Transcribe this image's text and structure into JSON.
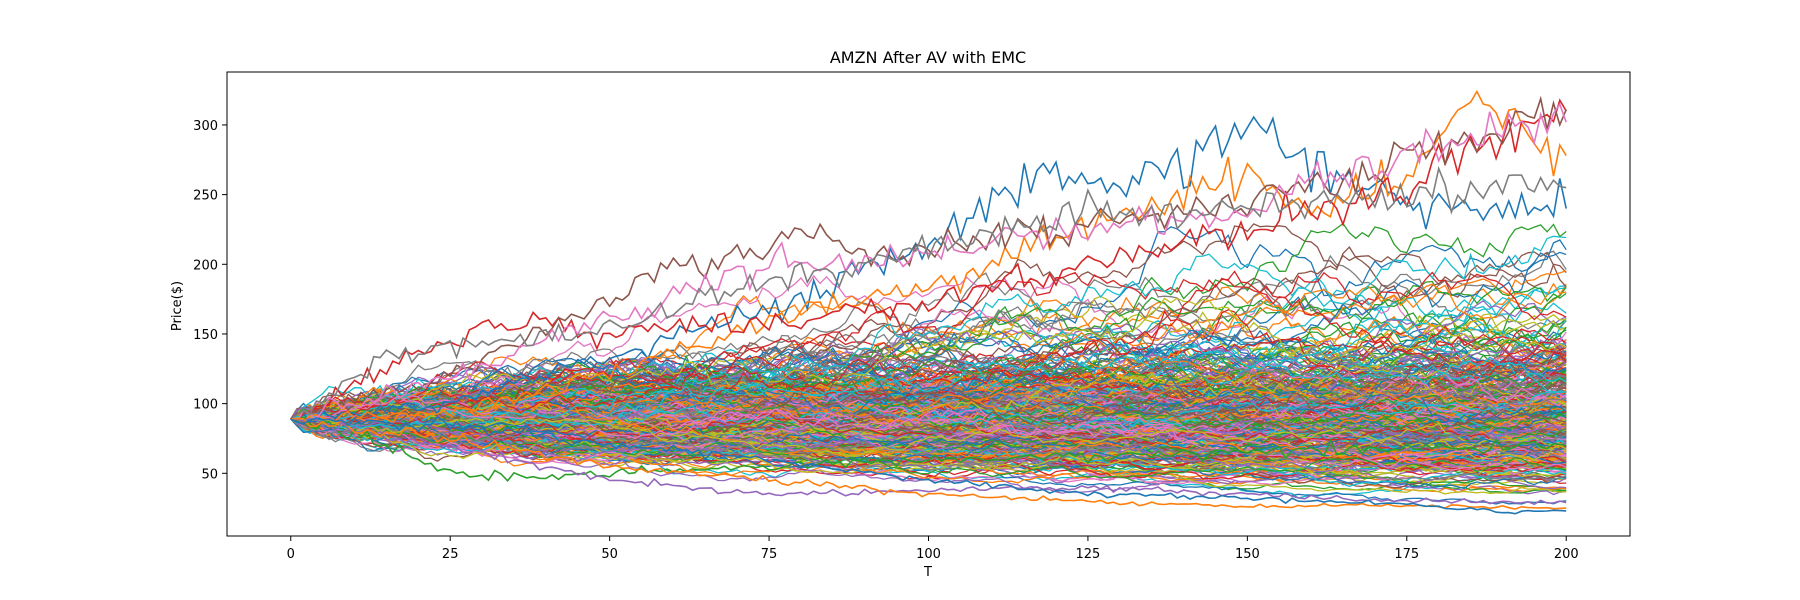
{
  "chart_data": {
    "type": "line",
    "title": "AMZN After AV with EMC",
    "xlabel": "T",
    "ylabel": "Price($)",
    "xlim": [
      -10,
      210
    ],
    "ylim": [
      5,
      338
    ],
    "x_ticks": [
      0,
      25,
      50,
      75,
      100,
      125,
      150,
      175,
      200
    ],
    "y_ticks": [
      50,
      100,
      150,
      200,
      250,
      300
    ],
    "start_price": 89,
    "steps": 200,
    "grid": false,
    "legend": "none",
    "series_colors": [
      "#1f77b4",
      "#ff7f0e",
      "#2ca02c",
      "#d62728",
      "#9467bd",
      "#8c564b",
      "#e377c2",
      "#7f7f7f",
      "#bcbd22",
      "#17becf"
    ],
    "series": [
      {
        "values": [
          [
            0,
            89
          ],
          [
            25,
            100
          ],
          [
            50,
            135
          ],
          [
            75,
            170
          ],
          [
            100,
            215
          ],
          [
            110,
            245
          ],
          [
            120,
            272
          ],
          [
            130,
            250
          ],
          [
            140,
            278
          ],
          [
            150,
            299
          ],
          [
            155,
            290
          ],
          [
            160,
            270
          ],
          [
            175,
            245
          ],
          [
            200,
            240
          ]
        ],
        "color": "#1f77b4"
      },
      {
        "values": [
          [
            0,
            89
          ],
          [
            25,
            95
          ],
          [
            50,
            120
          ],
          [
            75,
            160
          ],
          [
            100,
            185
          ],
          [
            125,
            230
          ],
          [
            140,
            250
          ],
          [
            150,
            262
          ],
          [
            160,
            240
          ],
          [
            175,
            265
          ],
          [
            186,
            325
          ],
          [
            190,
            300
          ],
          [
            200,
            278
          ]
        ],
        "color": "#ff7f0e"
      },
      {
        "values": [
          [
            0,
            89
          ],
          [
            25,
            148
          ],
          [
            30,
            155
          ],
          [
            40,
            155
          ],
          [
            50,
            150
          ],
          [
            75,
            160
          ],
          [
            100,
            175
          ],
          [
            125,
            200
          ],
          [
            150,
            225
          ],
          [
            175,
            255
          ],
          [
            190,
            300
          ],
          [
            200,
            310
          ]
        ],
        "color": "#d62728"
      },
      {
        "values": [
          [
            0,
            89
          ],
          [
            25,
            120
          ],
          [
            50,
            175
          ],
          [
            60,
            195
          ],
          [
            75,
            210
          ],
          [
            80,
            225
          ],
          [
            90,
            205
          ],
          [
            100,
            210
          ],
          [
            125,
            230
          ],
          [
            150,
            245
          ],
          [
            175,
            275
          ],
          [
            200,
            311
          ]
        ],
        "color": "#8c564b"
      },
      {
        "values": [
          [
            0,
            89
          ],
          [
            25,
            118
          ],
          [
            50,
            160
          ],
          [
            75,
            200
          ],
          [
            100,
            205
          ],
          [
            125,
            225
          ],
          [
            150,
            240
          ],
          [
            175,
            280
          ],
          [
            190,
            295
          ],
          [
            200,
            302
          ]
        ],
        "color": "#e377c2"
      },
      {
        "values": [
          [
            0,
            89
          ],
          [
            15,
            135
          ],
          [
            25,
            140
          ],
          [
            50,
            155
          ],
          [
            75,
            190
          ],
          [
            100,
            210
          ],
          [
            125,
            238
          ],
          [
            150,
            240
          ],
          [
            175,
            250
          ],
          [
            200,
            255
          ]
        ],
        "color": "#7f7f7f"
      },
      {
        "values": [
          [
            0,
            89
          ],
          [
            10,
            80
          ],
          [
            25,
            50
          ],
          [
            30,
            48
          ],
          [
            40,
            47
          ],
          [
            50,
            50
          ],
          [
            75,
            55
          ],
          [
            100,
            60
          ],
          [
            125,
            62
          ],
          [
            150,
            65
          ],
          [
            175,
            68
          ],
          [
            200,
            70
          ]
        ],
        "color": "#2ca02c"
      },
      {
        "values": [
          [
            0,
            89
          ],
          [
            25,
            70
          ],
          [
            50,
            45
          ],
          [
            75,
            35
          ],
          [
            100,
            38
          ],
          [
            125,
            40
          ],
          [
            150,
            35
          ],
          [
            175,
            30
          ],
          [
            200,
            29
          ]
        ],
        "color": "#9467bd"
      },
      {
        "values": [
          [
            0,
            89
          ],
          [
            25,
            75
          ],
          [
            50,
            55
          ],
          [
            75,
            45
          ],
          [
            100,
            35
          ],
          [
            125,
            30
          ],
          [
            150,
            26
          ],
          [
            175,
            27
          ],
          [
            200,
            25
          ]
        ],
        "color": "#ff7f0e"
      },
      {
        "values": [
          [
            0,
            89
          ],
          [
            25,
            85
          ],
          [
            50,
            70
          ],
          [
            75,
            60
          ],
          [
            100,
            45
          ],
          [
            125,
            35
          ],
          [
            150,
            32
          ],
          [
            175,
            28
          ],
          [
            190,
            22
          ],
          [
            200,
            23
          ]
        ],
        "color": "#1f77b4"
      }
    ]
  }
}
